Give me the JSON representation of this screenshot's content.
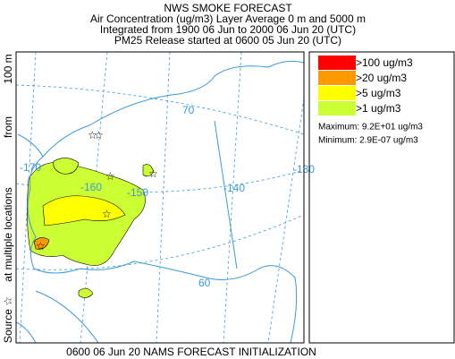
{
  "header": {
    "title": "NWS SMOKE FORECAST",
    "lines": [
      "Air Concentration (ug/m3) Layer Average    0 m and  5000 m",
      "Integrated from 1900 06 Jun to 2000 06 Jun 20 (UTC)",
      "PM25 Release started at 0600 05 Jun 20 (UTC)"
    ]
  },
  "side_label": [
    "Source ☆",
    "at multiple locations",
    "from",
    "100 m"
  ],
  "map": {
    "grid_labels": [
      "-170",
      "-160",
      "-150",
      "-140",
      "-130",
      "70",
      "60"
    ]
  },
  "legend": {
    "entries": [
      {
        "label": ">100 ug/m3",
        "color": "#ff0000"
      },
      {
        "label": ">20 ug/m3",
        "color": "#ff9900"
      },
      {
        "label": ">5 ug/m3",
        "color": "#ffff00"
      },
      {
        "label": ">1 ug/m3",
        "color": "#ccff33"
      }
    ],
    "maximum": "Maximum: 9.2E+01 ug/m3",
    "minimum": "Minimum: 2.9E-07 ug/m3"
  },
  "footer": "0600 06 Jun 20 NAMS FORECAST INITIALIZATION"
}
